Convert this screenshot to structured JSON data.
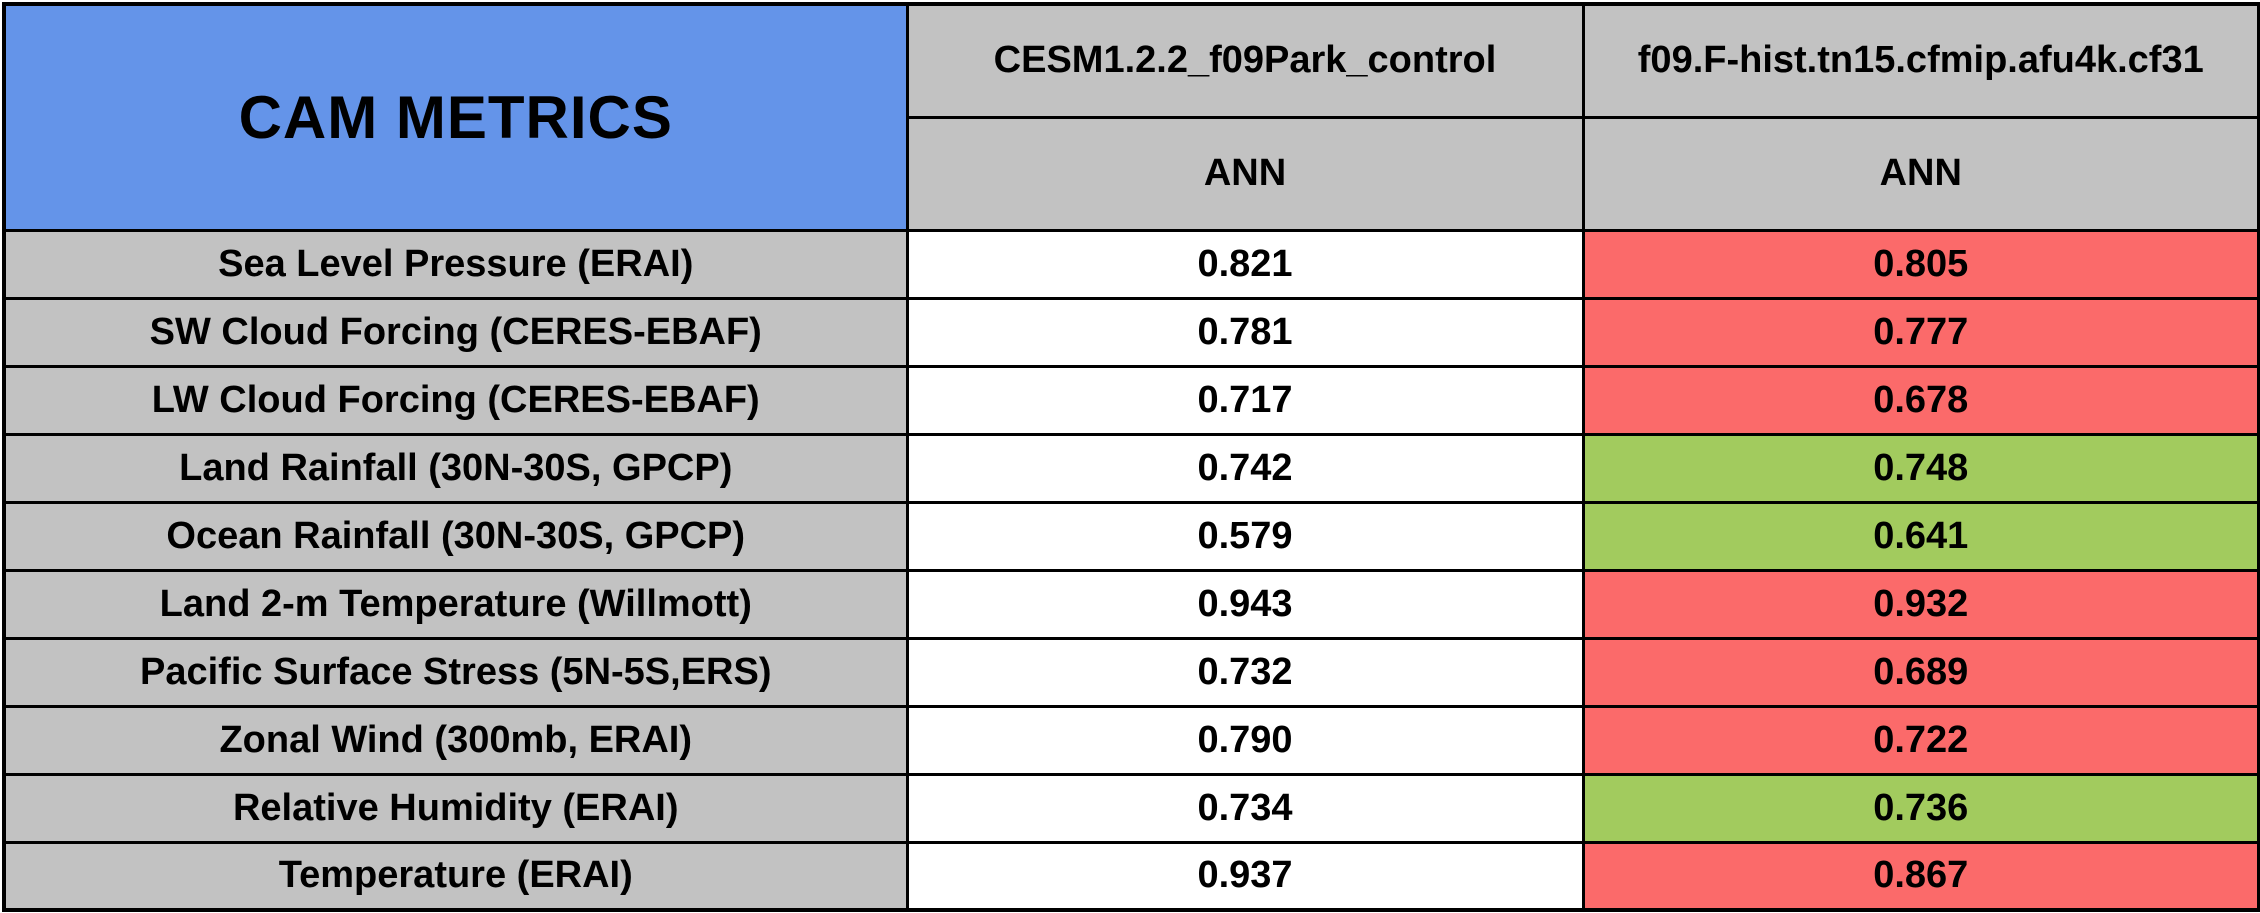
{
  "chart_data": {
    "type": "table",
    "title": "CAM METRICS",
    "series": [
      {
        "name": "CESM1.2.2_f09Park_control",
        "season": "ANN"
      },
      {
        "name": "f09.F-hist.tn15.cfmip.afu4k.cf31",
        "season": "ANN"
      }
    ],
    "rows": [
      {
        "label": "Sea Level Pressure (ERAI)",
        "values": [
          "0.821",
          "0.805"
        ],
        "test_status": "worse"
      },
      {
        "label": "SW Cloud Forcing (CERES-EBAF)",
        "values": [
          "0.781",
          "0.777"
        ],
        "test_status": "worse"
      },
      {
        "label": "LW Cloud Forcing (CERES-EBAF)",
        "values": [
          "0.717",
          "0.678"
        ],
        "test_status": "worse"
      },
      {
        "label": "Land Rainfall (30N-30S, GPCP)",
        "values": [
          "0.742",
          "0.748"
        ],
        "test_status": "better"
      },
      {
        "label": "Ocean Rainfall (30N-30S, GPCP)",
        "values": [
          "0.579",
          "0.641"
        ],
        "test_status": "better"
      },
      {
        "label": "Land 2-m Temperature (Willmott)",
        "values": [
          "0.943",
          "0.932"
        ],
        "test_status": "worse"
      },
      {
        "label": "Pacific Surface Stress (5N-5S,ERS)",
        "values": [
          "0.732",
          "0.689"
        ],
        "test_status": "worse"
      },
      {
        "label": "Zonal Wind (300mb, ERAI)",
        "values": [
          "0.790",
          "0.722"
        ],
        "test_status": "worse"
      },
      {
        "label": "Relative Humidity (ERAI)",
        "values": [
          "0.734",
          "0.736"
        ],
        "test_status": "better"
      },
      {
        "label": "Temperature (ERAI)",
        "values": [
          "0.937",
          "0.867"
        ],
        "test_status": "worse"
      }
    ]
  },
  "colors": {
    "title-bg": "#6494E9",
    "header-bg": "#C2C2C2",
    "value-bg": "#FFFFFF",
    "worse-bg": "#FB6A6A",
    "better-bg": "#A2CB5E",
    "border": "#000000",
    "text": "#000000"
  }
}
